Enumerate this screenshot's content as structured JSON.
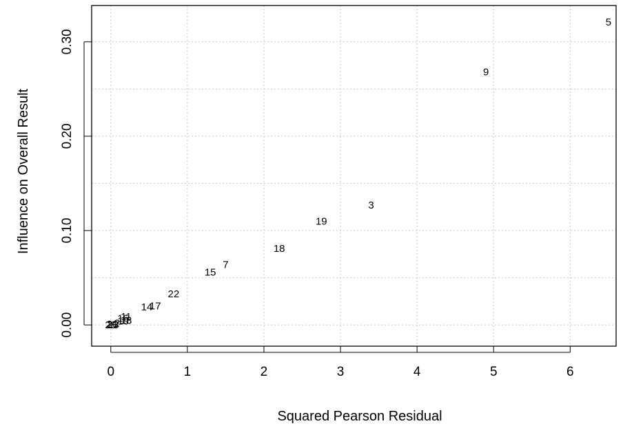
{
  "chart_data": {
    "type": "scatter",
    "title": "",
    "xlabel": "Squared Pearson Residual",
    "ylabel": "Influence on Overall Result",
    "xlim": [
      -0.25,
      6.6
    ],
    "ylim": [
      -0.0225,
      0.3385
    ],
    "xticks": [
      0,
      1,
      2,
      3,
      4,
      5,
      6
    ],
    "xtick_labels": [
      "0",
      "1",
      "2",
      "3",
      "4",
      "5",
      "6"
    ],
    "yticks": [
      0.0,
      0.1,
      0.2,
      0.3
    ],
    "ytick_labels": [
      "0.00",
      "0.10",
      "0.20",
      "0.30"
    ],
    "grid": true,
    "grid_style": "dotted",
    "marker": "text-label",
    "points": [
      {
        "label": "5",
        "x": 6.5,
        "y": 0.321
      },
      {
        "label": "9",
        "x": 4.9,
        "y": 0.268
      },
      {
        "label": "3",
        "x": 3.4,
        "y": 0.127
      },
      {
        "label": "19",
        "x": 2.75,
        "y": 0.11
      },
      {
        "label": "18",
        "x": 2.2,
        "y": 0.081
      },
      {
        "label": "7",
        "x": 1.5,
        "y": 0.064
      },
      {
        "label": "15",
        "x": 1.3,
        "y": 0.056
      },
      {
        "label": "22",
        "x": 0.82,
        "y": 0.033
      },
      {
        "label": "17",
        "x": 0.58,
        "y": 0.02
      },
      {
        "label": "14",
        "x": 0.47,
        "y": 0.019
      },
      {
        "label": "11",
        "x": 0.2,
        "y": 0.009
      },
      {
        "label": "16",
        "x": 0.16,
        "y": 0.007
      },
      {
        "label": "13",
        "x": 0.2,
        "y": 0.005
      },
      {
        "label": "10",
        "x": 0.16,
        "y": 0.004
      },
      {
        "label": "2",
        "x": 0.08,
        "y": 0.002
      },
      {
        "label": "20",
        "x": 0.02,
        "y": 0.001
      },
      {
        "label": "28",
        "x": 0.0,
        "y": 0.0
      },
      {
        "label": "23",
        "x": 0.03,
        "y": 0.0
      }
    ]
  }
}
